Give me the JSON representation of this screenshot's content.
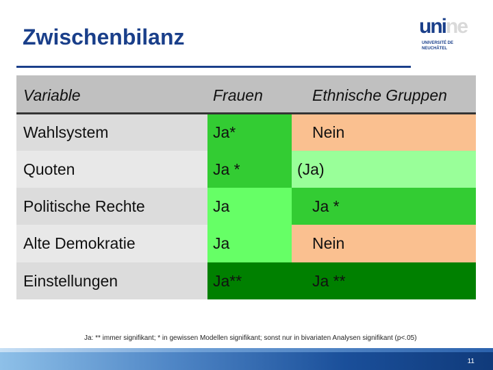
{
  "slide": {
    "title": "Zwischenbilanz",
    "page_number": "11",
    "footnote": "Ja: ** immer signifikant; * in gewissen Modellen signifikant; sonst nur in bivariaten Analysen signifikant (p<.05)"
  },
  "logo": {
    "word_dark": "uni",
    "word_light": "ne",
    "line1": "UNIVERSITÉ DE",
    "line2": "NEUCHÂTEL"
  },
  "table": {
    "headers": [
      "Variable",
      "Frauen",
      "Ethnische Gruppen"
    ],
    "rows": [
      {
        "variable": "Wahlsystem",
        "frauen": "Ja*",
        "ethnische": "Nein"
      },
      {
        "variable": "Quoten",
        "frauen": "Ja *",
        "ethnische": "(Ja)"
      },
      {
        "variable": "Politische Rechte",
        "frauen": "Ja",
        "ethnische": "Ja *"
      },
      {
        "variable": "Alte Demokratie",
        "frauen": "Ja",
        "ethnische": "Nein"
      },
      {
        "variable": "Einstellungen",
        "frauen": "Ja**",
        "ethnische": "Ja **"
      }
    ]
  },
  "colors": {
    "title": "#1a3f8a",
    "header_bg": "#c0c0c0",
    "row_a_bg": "#dcdcdc",
    "row_b_bg": "#e8e8e8",
    "ja_star": "#33cc33",
    "ja_bivariat": "#66ff66",
    "ja_paren": "#99ff99",
    "ja_double_star": "#008000",
    "nein": "#fac090"
  }
}
